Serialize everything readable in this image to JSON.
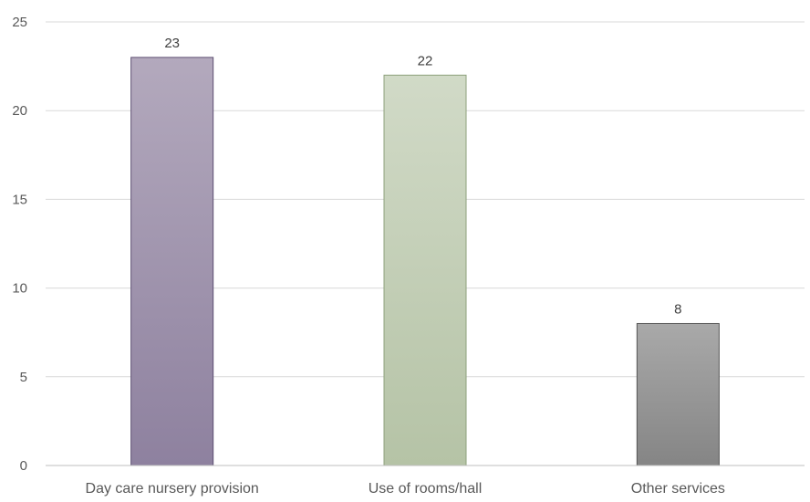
{
  "chart_data": {
    "type": "bar",
    "title": "",
    "xlabel": "",
    "ylabel": "",
    "categories": [
      "Day care nursery provision",
      "Use of rooms/hall",
      "Other services"
    ],
    "values": [
      23,
      22,
      8
    ],
    "data_labels": [
      "23",
      "22",
      "8"
    ],
    "ylim": [
      0,
      25
    ],
    "yticks": [
      0,
      5,
      10,
      15,
      20,
      25
    ],
    "grid": true,
    "legend": "none",
    "bar_colors": [
      {
        "top": "#b3a9bd",
        "bottom": "#8e819f",
        "stroke": "#5e4f72"
      },
      {
        "top": "#d1dac7",
        "bottom": "#b5c3a6",
        "stroke": "#8da07b"
      },
      {
        "top": "#a9a9a9",
        "bottom": "#858585",
        "stroke": "#555555"
      }
    ]
  }
}
